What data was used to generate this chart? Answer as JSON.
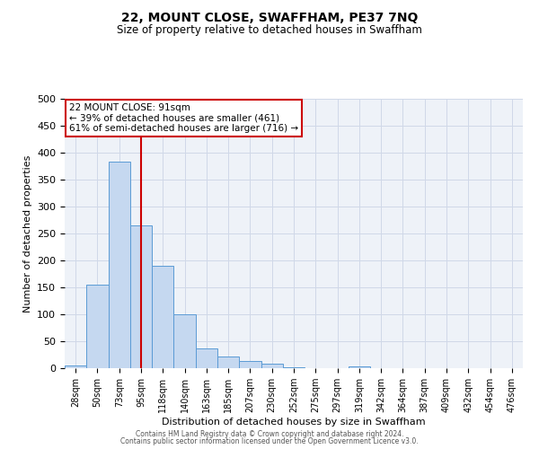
{
  "title": "22, MOUNT CLOSE, SWAFFHAM, PE37 7NQ",
  "subtitle": "Size of property relative to detached houses in Swaffham",
  "xlabel": "Distribution of detached houses by size in Swaffham",
  "ylabel": "Number of detached properties",
  "bar_labels": [
    "28sqm",
    "50sqm",
    "73sqm",
    "95sqm",
    "118sqm",
    "140sqm",
    "163sqm",
    "185sqm",
    "207sqm",
    "230sqm",
    "252sqm",
    "275sqm",
    "297sqm",
    "319sqm",
    "342sqm",
    "364sqm",
    "387sqm",
    "409sqm",
    "432sqm",
    "454sqm",
    "476sqm"
  ],
  "bar_values": [
    5,
    155,
    383,
    265,
    190,
    100,
    37,
    22,
    14,
    8,
    2,
    0,
    0,
    3,
    0,
    0,
    0,
    0,
    0,
    0,
    0
  ],
  "bar_color": "#c5d8f0",
  "bar_edge_color": "#5b9bd5",
  "vline_x_index": 3,
  "vline_color": "#cc0000",
  "ylim": [
    0,
    500
  ],
  "yticks": [
    0,
    50,
    100,
    150,
    200,
    250,
    300,
    350,
    400,
    450,
    500
  ],
  "annotation_title": "22 MOUNT CLOSE: 91sqm",
  "annotation_line1": "← 39% of detached houses are smaller (461)",
  "annotation_line2": "61% of semi-detached houses are larger (716) →",
  "annotation_box_color": "#ffffff",
  "annotation_box_edge": "#cc0000",
  "grid_color": "#d0d8e8",
  "background_color": "#eef2f8",
  "footer1": "Contains HM Land Registry data © Crown copyright and database right 2024.",
  "footer2": "Contains public sector information licensed under the Open Government Licence v3.0."
}
